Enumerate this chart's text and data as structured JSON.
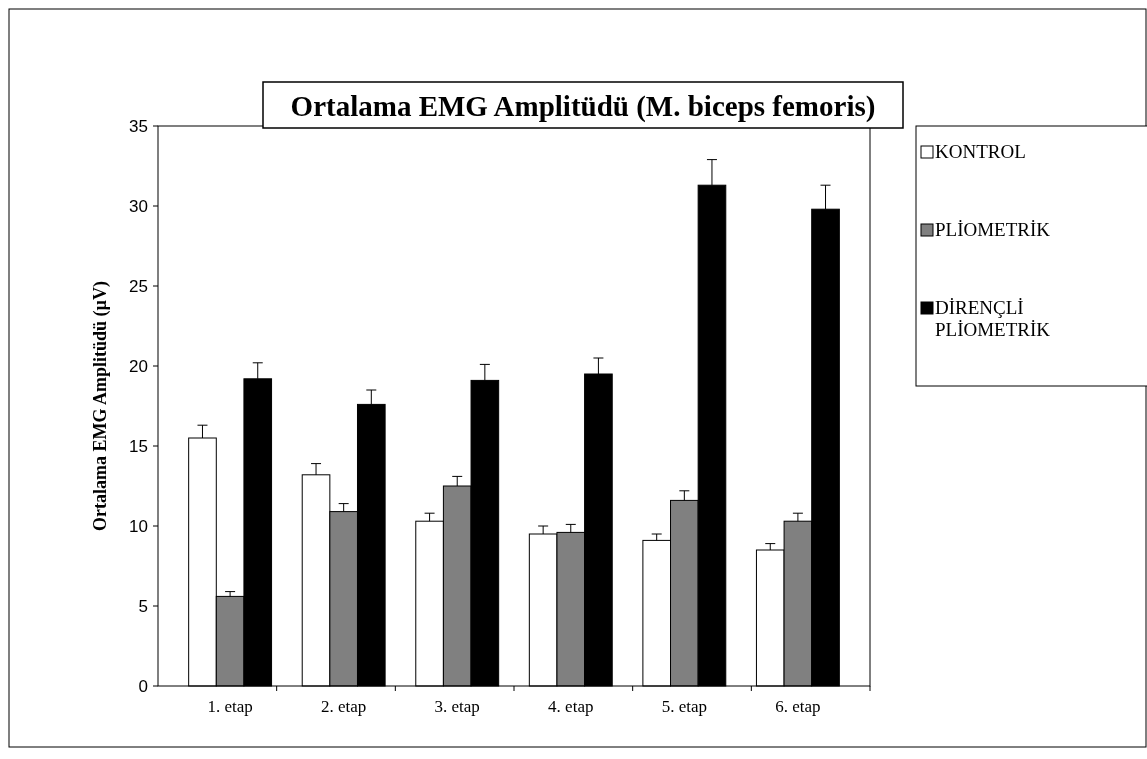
{
  "chart_data": {
    "type": "bar",
    "title": "Ortalama EMG Amplitüdü (M. biceps femoris)",
    "ylabel": "Ortalama EMG Amplitüdü (µV)",
    "categories": [
      "1. etap",
      "2. etap",
      "3. etap",
      "4. etap",
      "5. etap",
      "6. etap"
    ],
    "series": [
      {
        "name": "KONTROL",
        "color": "#ffffff",
        "values": [
          15.5,
          13.2,
          10.3,
          9.5,
          9.1,
          8.5
        ],
        "errors": [
          [
            15.5,
            16.3
          ],
          [
            13.2,
            13.9
          ],
          [
            10.3,
            10.8
          ],
          [
            9.5,
            10
          ],
          [
            9.1,
            9.5
          ],
          [
            8.5,
            8.9
          ]
        ]
      },
      {
        "name": "PLİOMETRİK",
        "color": "#808080",
        "values": [
          5.6,
          10.9,
          12.5,
          9.6,
          11.6,
          10.3
        ],
        "errors": [
          [
            5.6,
            5.9
          ],
          [
            10.9,
            11.4
          ],
          [
            12.5,
            13.1
          ],
          [
            9.6,
            10.1
          ],
          [
            11.6,
            12.2
          ],
          [
            10.3,
            10.8
          ]
        ]
      },
      {
        "name": "DİRENÇLİ PLİOMETRİK",
        "color": "#000000",
        "values": [
          19.2,
          17.6,
          19.1,
          19.5,
          31.3,
          29.8
        ],
        "errors": [
          [
            19.2,
            20.2
          ],
          [
            17.6,
            18.5
          ],
          [
            19.1,
            20.1
          ],
          [
            19.5,
            20.5
          ],
          [
            31.3,
            32.9
          ],
          [
            29.8,
            31.3
          ]
        ]
      }
    ],
    "ylim": [
      0,
      35
    ],
    "yticks": [
      0,
      5,
      10,
      15,
      20,
      25,
      30,
      35
    ],
    "grid": false,
    "legend": "right"
  }
}
